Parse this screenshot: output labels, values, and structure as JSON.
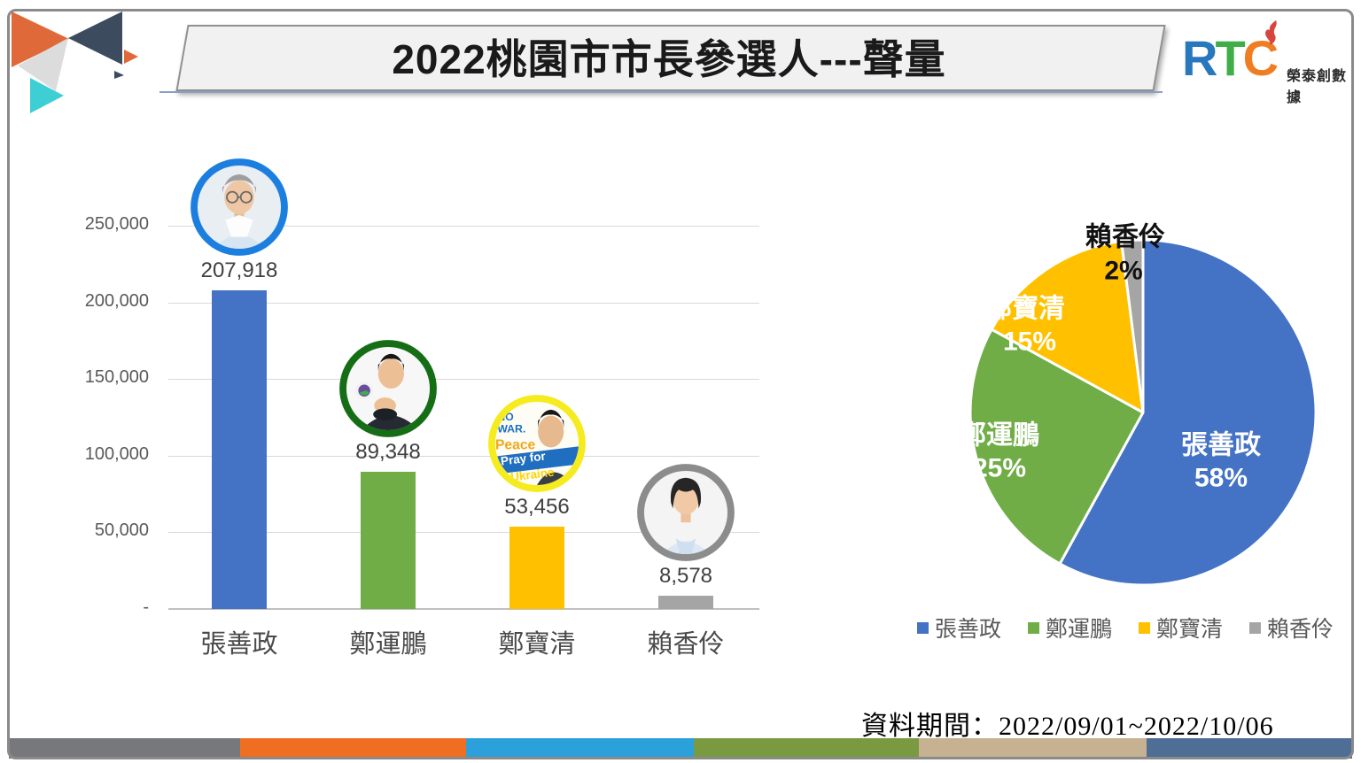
{
  "header": {
    "title": "2022桃園市市長參選人---聲量",
    "logo": {
      "letter_r": "R",
      "letter_t": "T",
      "letter_c": "C",
      "company": "榮泰創數據",
      "colors": {
        "r": "#2878BE",
        "t": "#3FAE49",
        "c": "#F07D22",
        "flame": "#D6453E"
      }
    }
  },
  "decor": {
    "triangle_colors": [
      "#E0693A",
      "#3D4B5F",
      "#DCDCDC",
      "#3ECFD4"
    ]
  },
  "footer": {
    "period": "資料期間：2022/09/01~2022/10/06",
    "strip_colors": [
      "#77787B",
      "#F06E21",
      "#2CA0DB",
      "#7A9A41",
      "#C6B191",
      "#4E6E96"
    ]
  },
  "chart_data": [
    {
      "type": "bar",
      "title": "",
      "xlabel": "",
      "ylabel": "",
      "categories": [
        "張善政",
        "鄭運鵬",
        "鄭寶清",
        "賴香伶"
      ],
      "values": [
        207918,
        89348,
        53456,
        8578
      ],
      "value_labels": [
        "207,918",
        "89,348",
        "53,456",
        "8,578"
      ],
      "bar_colors": [
        "#4472C4",
        "#70AD47",
        "#FFC000",
        "#A5A5A5"
      ],
      "ylim": [
        0,
        250000
      ],
      "grid": true,
      "yticks": [
        {
          "value": 0,
          "label": "-"
        },
        {
          "value": 50000,
          "label": "50,000"
        },
        {
          "value": 100000,
          "label": "100,000"
        },
        {
          "value": 150000,
          "label": "150,000"
        },
        {
          "value": 200000,
          "label": "200,000"
        },
        {
          "value": 250000,
          "label": "250,000"
        }
      ],
      "avatars": [
        {
          "ring": "#1C7FE0"
        },
        {
          "ring": "#156E15"
        },
        {
          "ring": "#F6EB1E",
          "sticker_lines": [
            "NO",
            "WAR.",
            "Peace",
            "Pray for",
            "Ukraine"
          ]
        },
        {
          "ring": "#8C8C8C"
        }
      ]
    },
    {
      "type": "pie",
      "categories": [
        "張善政",
        "鄭運鵬",
        "鄭寶清",
        "賴香伶"
      ],
      "values": [
        58,
        25,
        15,
        2
      ],
      "percent_labels": [
        "58%",
        "25%",
        "15%",
        "2%"
      ],
      "colors": [
        "#4472C4",
        "#70AD47",
        "#FFC000",
        "#A5A5A5"
      ],
      "start_angle_deg": 0,
      "direction": "clockwise",
      "legend_position": "bottom"
    }
  ]
}
